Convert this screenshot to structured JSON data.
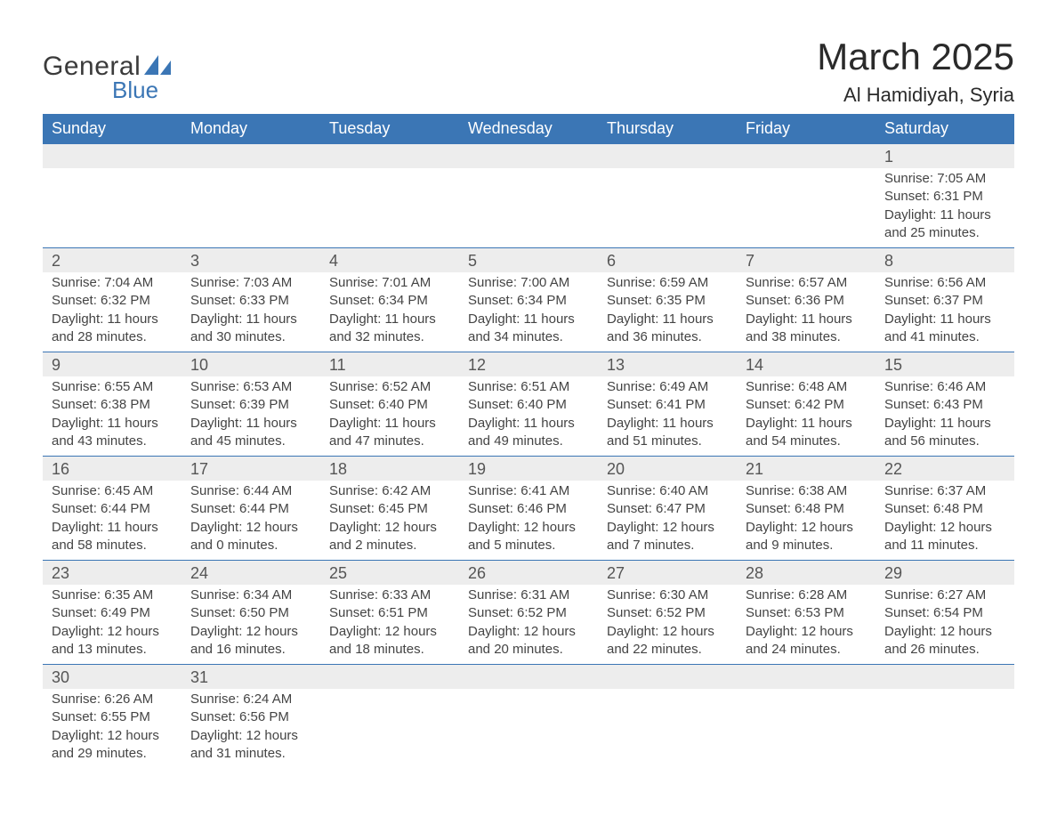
{
  "logo": {
    "text1": "General",
    "text2": "Blue",
    "brand_color": "#3b76b5"
  },
  "title": "March 2025",
  "location": "Al Hamidiyah, Syria",
  "colors": {
    "header_bg": "#3b76b5",
    "header_text": "#ffffff",
    "daynum_bg": "#ededed",
    "border": "#3b76b5",
    "text": "#444444"
  },
  "day_headers": [
    "Sunday",
    "Monday",
    "Tuesday",
    "Wednesday",
    "Thursday",
    "Friday",
    "Saturday"
  ],
  "weeks": [
    [
      null,
      null,
      null,
      null,
      null,
      null,
      {
        "n": "1",
        "sr": "Sunrise: 7:05 AM",
        "ss": "Sunset: 6:31 PM",
        "d1": "Daylight: 11 hours",
        "d2": "and 25 minutes."
      }
    ],
    [
      {
        "n": "2",
        "sr": "Sunrise: 7:04 AM",
        "ss": "Sunset: 6:32 PM",
        "d1": "Daylight: 11 hours",
        "d2": "and 28 minutes."
      },
      {
        "n": "3",
        "sr": "Sunrise: 7:03 AM",
        "ss": "Sunset: 6:33 PM",
        "d1": "Daylight: 11 hours",
        "d2": "and 30 minutes."
      },
      {
        "n": "4",
        "sr": "Sunrise: 7:01 AM",
        "ss": "Sunset: 6:34 PM",
        "d1": "Daylight: 11 hours",
        "d2": "and 32 minutes."
      },
      {
        "n": "5",
        "sr": "Sunrise: 7:00 AM",
        "ss": "Sunset: 6:34 PM",
        "d1": "Daylight: 11 hours",
        "d2": "and 34 minutes."
      },
      {
        "n": "6",
        "sr": "Sunrise: 6:59 AM",
        "ss": "Sunset: 6:35 PM",
        "d1": "Daylight: 11 hours",
        "d2": "and 36 minutes."
      },
      {
        "n": "7",
        "sr": "Sunrise: 6:57 AM",
        "ss": "Sunset: 6:36 PM",
        "d1": "Daylight: 11 hours",
        "d2": "and 38 minutes."
      },
      {
        "n": "8",
        "sr": "Sunrise: 6:56 AM",
        "ss": "Sunset: 6:37 PM",
        "d1": "Daylight: 11 hours",
        "d2": "and 41 minutes."
      }
    ],
    [
      {
        "n": "9",
        "sr": "Sunrise: 6:55 AM",
        "ss": "Sunset: 6:38 PM",
        "d1": "Daylight: 11 hours",
        "d2": "and 43 minutes."
      },
      {
        "n": "10",
        "sr": "Sunrise: 6:53 AM",
        "ss": "Sunset: 6:39 PM",
        "d1": "Daylight: 11 hours",
        "d2": "and 45 minutes."
      },
      {
        "n": "11",
        "sr": "Sunrise: 6:52 AM",
        "ss": "Sunset: 6:40 PM",
        "d1": "Daylight: 11 hours",
        "d2": "and 47 minutes."
      },
      {
        "n": "12",
        "sr": "Sunrise: 6:51 AM",
        "ss": "Sunset: 6:40 PM",
        "d1": "Daylight: 11 hours",
        "d2": "and 49 minutes."
      },
      {
        "n": "13",
        "sr": "Sunrise: 6:49 AM",
        "ss": "Sunset: 6:41 PM",
        "d1": "Daylight: 11 hours",
        "d2": "and 51 minutes."
      },
      {
        "n": "14",
        "sr": "Sunrise: 6:48 AM",
        "ss": "Sunset: 6:42 PM",
        "d1": "Daylight: 11 hours",
        "d2": "and 54 minutes."
      },
      {
        "n": "15",
        "sr": "Sunrise: 6:46 AM",
        "ss": "Sunset: 6:43 PM",
        "d1": "Daylight: 11 hours",
        "d2": "and 56 minutes."
      }
    ],
    [
      {
        "n": "16",
        "sr": "Sunrise: 6:45 AM",
        "ss": "Sunset: 6:44 PM",
        "d1": "Daylight: 11 hours",
        "d2": "and 58 minutes."
      },
      {
        "n": "17",
        "sr": "Sunrise: 6:44 AM",
        "ss": "Sunset: 6:44 PM",
        "d1": "Daylight: 12 hours",
        "d2": "and 0 minutes."
      },
      {
        "n": "18",
        "sr": "Sunrise: 6:42 AM",
        "ss": "Sunset: 6:45 PM",
        "d1": "Daylight: 12 hours",
        "d2": "and 2 minutes."
      },
      {
        "n": "19",
        "sr": "Sunrise: 6:41 AM",
        "ss": "Sunset: 6:46 PM",
        "d1": "Daylight: 12 hours",
        "d2": "and 5 minutes."
      },
      {
        "n": "20",
        "sr": "Sunrise: 6:40 AM",
        "ss": "Sunset: 6:47 PM",
        "d1": "Daylight: 12 hours",
        "d2": "and 7 minutes."
      },
      {
        "n": "21",
        "sr": "Sunrise: 6:38 AM",
        "ss": "Sunset: 6:48 PM",
        "d1": "Daylight: 12 hours",
        "d2": "and 9 minutes."
      },
      {
        "n": "22",
        "sr": "Sunrise: 6:37 AM",
        "ss": "Sunset: 6:48 PM",
        "d1": "Daylight: 12 hours",
        "d2": "and 11 minutes."
      }
    ],
    [
      {
        "n": "23",
        "sr": "Sunrise: 6:35 AM",
        "ss": "Sunset: 6:49 PM",
        "d1": "Daylight: 12 hours",
        "d2": "and 13 minutes."
      },
      {
        "n": "24",
        "sr": "Sunrise: 6:34 AM",
        "ss": "Sunset: 6:50 PM",
        "d1": "Daylight: 12 hours",
        "d2": "and 16 minutes."
      },
      {
        "n": "25",
        "sr": "Sunrise: 6:33 AM",
        "ss": "Sunset: 6:51 PM",
        "d1": "Daylight: 12 hours",
        "d2": "and 18 minutes."
      },
      {
        "n": "26",
        "sr": "Sunrise: 6:31 AM",
        "ss": "Sunset: 6:52 PM",
        "d1": "Daylight: 12 hours",
        "d2": "and 20 minutes."
      },
      {
        "n": "27",
        "sr": "Sunrise: 6:30 AM",
        "ss": "Sunset: 6:52 PM",
        "d1": "Daylight: 12 hours",
        "d2": "and 22 minutes."
      },
      {
        "n": "28",
        "sr": "Sunrise: 6:28 AM",
        "ss": "Sunset: 6:53 PM",
        "d1": "Daylight: 12 hours",
        "d2": "and 24 minutes."
      },
      {
        "n": "29",
        "sr": "Sunrise: 6:27 AM",
        "ss": "Sunset: 6:54 PM",
        "d1": "Daylight: 12 hours",
        "d2": "and 26 minutes."
      }
    ],
    [
      {
        "n": "30",
        "sr": "Sunrise: 6:26 AM",
        "ss": "Sunset: 6:55 PM",
        "d1": "Daylight: 12 hours",
        "d2": "and 29 minutes."
      },
      {
        "n": "31",
        "sr": "Sunrise: 6:24 AM",
        "ss": "Sunset: 6:56 PM",
        "d1": "Daylight: 12 hours",
        "d2": "and 31 minutes."
      },
      null,
      null,
      null,
      null,
      null
    ]
  ]
}
